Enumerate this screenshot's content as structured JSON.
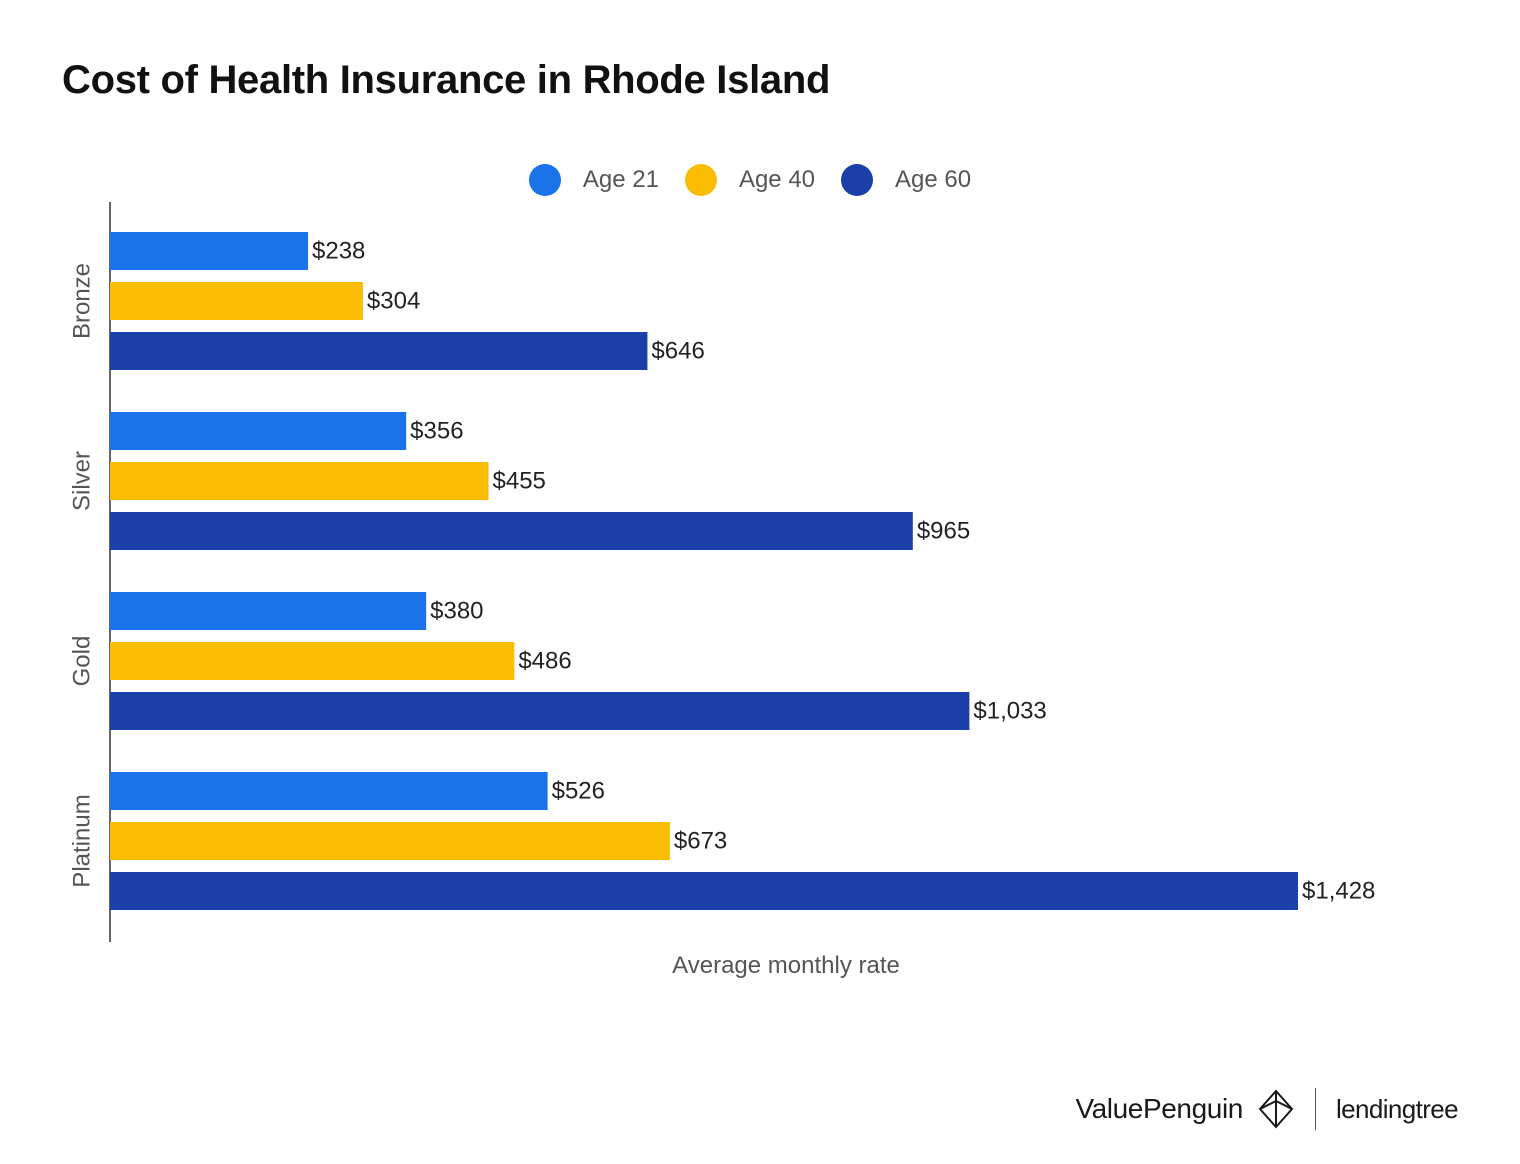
{
  "chart_data": {
    "type": "bar",
    "orientation": "horizontal",
    "title": "Cost of Health Insurance in Rhode Island",
    "xlabel": "Average monthly rate",
    "ylabel": "",
    "categories": [
      "Bronze",
      "Silver",
      "Gold",
      "Platinum"
    ],
    "series": [
      {
        "name": "Age 21",
        "color": "#1a73e8",
        "values": [
          238,
          356,
          380,
          526
        ],
        "labels": [
          "$238",
          "$356",
          "$380",
          "$526"
        ]
      },
      {
        "name": "Age 40",
        "color": "#fbbc04",
        "values": [
          304,
          455,
          486,
          673
        ],
        "labels": [
          "$304",
          "$455",
          "$486",
          "$673"
        ]
      },
      {
        "name": "Age 60",
        "color": "#1a3fa8",
        "values": [
          646,
          965,
          1033,
          1428
        ],
        "labels": [
          "$646",
          "$965",
          "$1,033",
          "$1,428"
        ]
      }
    ],
    "xlim": [
      0,
      1428
    ],
    "grid": false,
    "legend_position": "top-center"
  },
  "footer": {
    "brand_primary": "ValuePenguin",
    "brand_secondary": "lendingtree"
  }
}
